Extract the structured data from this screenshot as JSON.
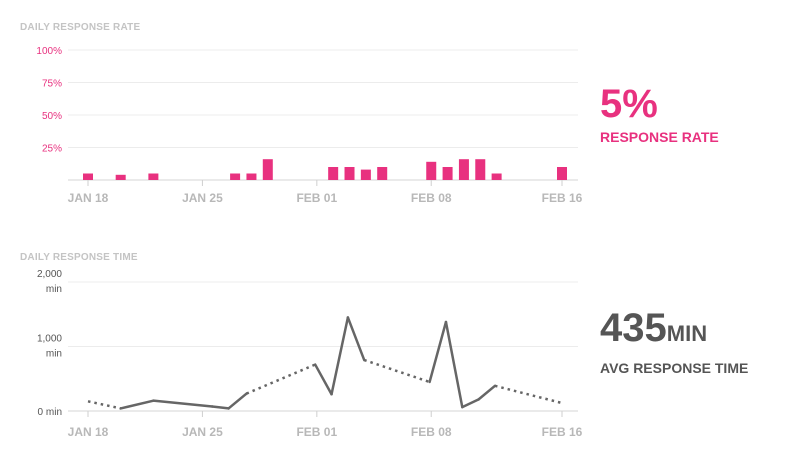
{
  "chart_data": [
    {
      "type": "bar",
      "title": "DAILY RESPONSE RATE",
      "ylim": [
        0,
        100
      ],
      "yticks": [
        "25%",
        "50%",
        "75%",
        "100%"
      ],
      "xticks": [
        "JAN 18",
        "JAN 25",
        "FEB 01",
        "FEB 08",
        "FEB 16"
      ],
      "grid": true,
      "color": "#e8317f",
      "x": [
        "Jan 18",
        "Jan 19",
        "Jan 20",
        "Jan 21",
        "Jan 22",
        "Jan 23",
        "Jan 24",
        "Jan 25",
        "Jan 26",
        "Jan 27",
        "Jan 28",
        "Jan 29",
        "Jan 30",
        "Jan 31",
        "Feb 01",
        "Feb 02",
        "Feb 03",
        "Feb 04",
        "Feb 05",
        "Feb 06",
        "Feb 07",
        "Feb 08",
        "Feb 09",
        "Feb 10",
        "Feb 11",
        "Feb 12",
        "Feb 13",
        "Feb 14",
        "Feb 15",
        "Feb 16"
      ],
      "values": [
        5,
        0,
        4,
        0,
        5,
        0,
        0,
        0,
        0,
        5,
        5,
        16,
        0,
        0,
        0,
        10,
        10,
        8,
        10,
        0,
        0,
        14,
        10,
        16,
        16,
        5,
        0,
        0,
        0,
        10
      ]
    },
    {
      "type": "line",
      "title": "DAILY RESPONSE TIME",
      "ylim": [
        0,
        2000
      ],
      "yticks": [
        {
          "value": 0,
          "label": "0 min"
        },
        {
          "value": 1000,
          "label": "1,000",
          "unit": "min"
        },
        {
          "value": 2000,
          "label": "2,000",
          "unit": "min"
        }
      ],
      "xticks": [
        "JAN 18",
        "JAN 25",
        "FEB 01",
        "FEB 08",
        "FEB 16"
      ],
      "grid": true,
      "color": "#666666",
      "series": [
        {
          "points": [
            {
              "x": 0,
              "y": 150,
              "observed": true
            },
            {
              "x": 2,
              "y": 40,
              "observed": true
            },
            {
              "x": 4,
              "y": 160,
              "observed": true
            },
            {
              "x": 7.6,
              "y": 70,
              "observed": true
            },
            {
              "x": 8.6,
              "y": 40,
              "observed": true
            },
            {
              "x": 9.7,
              "y": 270,
              "observed": true
            },
            {
              "x": 13.9,
              "y": 720,
              "observed": true
            },
            {
              "x": 14.9,
              "y": 260,
              "observed": true
            },
            {
              "x": 15.9,
              "y": 1450,
              "observed": true
            },
            {
              "x": 16.9,
              "y": 790,
              "observed": true
            },
            {
              "x": 20.9,
              "y": 450,
              "observed": true
            },
            {
              "x": 21.9,
              "y": 1380,
              "observed": true
            },
            {
              "x": 22.9,
              "y": 60,
              "observed": true
            },
            {
              "x": 23.9,
              "y": 180,
              "observed": true
            },
            {
              "x": 24.9,
              "y": 390,
              "observed": true
            },
            {
              "x": 28.9,
              "y": 130,
              "observed": true
            }
          ],
          "dotted_segments": [
            [
              0,
              3
            ],
            [
              5,
              6
            ],
            [
              9,
              10
            ],
            [
              14,
              15
            ]
          ]
        }
      ]
    }
  ],
  "kpis": {
    "rate": {
      "value": "5%",
      "label": "RESPONSE RATE"
    },
    "time": {
      "value": "435",
      "unit": "MIN",
      "label": "AVG RESPONSE TIME"
    }
  }
}
